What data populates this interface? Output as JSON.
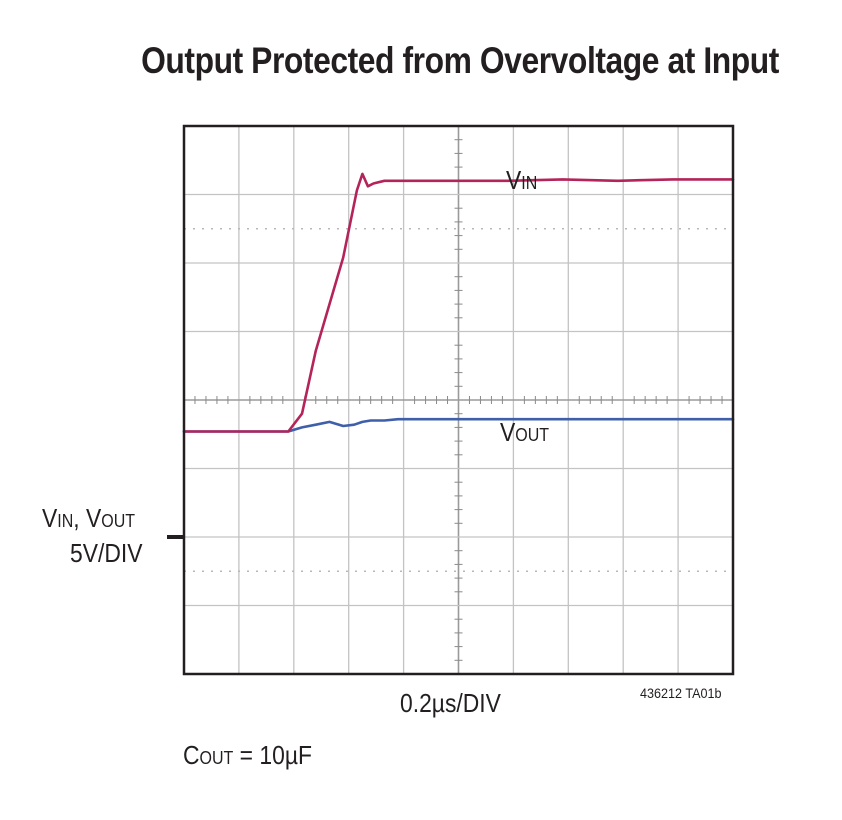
{
  "title": "Output Protected from Overvoltage at Input",
  "chart_data": {
    "type": "line",
    "title": "Output Protected from Overvoltage at Input",
    "grid": true,
    "divisions": {
      "x": 10,
      "y": 8
    },
    "xlabel": "0.2µs/DIV",
    "ylabel": {
      "prefix_a": "V",
      "sub_a": "IN",
      "sep": ", ",
      "prefix_b": "V",
      "sub_b": "OUT",
      "line2": "5V/DIV"
    },
    "x_units": "µs",
    "y_units": "V",
    "x_range_us": [
      -0.98,
      1.02
    ],
    "y_range_v": [
      -26,
      14
    ],
    "series": [
      {
        "name_prefix": "V",
        "name_sub": "IN",
        "color": "#b4245a",
        "x_us": [
          -0.98,
          -0.6,
          -0.55,
          -0.5,
          -0.4,
          -0.35,
          -0.33,
          -0.31,
          -0.29,
          -0.25,
          -0.2,
          -0.1,
          0.0,
          0.2,
          0.4,
          0.6,
          0.8,
          1.02
        ],
        "y_v": [
          -8.3,
          -8.3,
          -7.0,
          -2.4,
          4.4,
          9.3,
          10.5,
          9.6,
          9.8,
          10.0,
          10.0,
          10.0,
          10.0,
          10.0,
          10.1,
          10.0,
          10.1,
          10.1
        ]
      },
      {
        "name_prefix": "V",
        "name_sub": "OUT",
        "color": "#3f5faa",
        "x_us": [
          -0.98,
          -0.6,
          -0.55,
          -0.5,
          -0.45,
          -0.4,
          -0.36,
          -0.33,
          -0.3,
          -0.25,
          -0.2,
          0.0,
          0.2,
          0.4,
          0.6,
          0.8,
          1.02
        ],
        "y_v": [
          -8.3,
          -8.3,
          -8.0,
          -7.8,
          -7.6,
          -7.9,
          -7.8,
          -7.6,
          -7.5,
          -7.5,
          -7.4,
          -7.4,
          -7.4,
          -7.4,
          -7.4,
          -7.4,
          -7.4
        ]
      }
    ],
    "annotation": {
      "prefix": "C",
      "sub": "OUT",
      "rest": " = 10µF"
    },
    "figure_id": "436212 TA01b"
  }
}
